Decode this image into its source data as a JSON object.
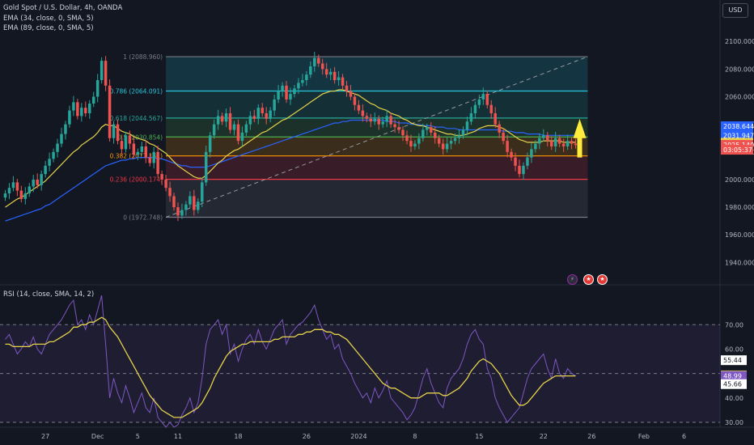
{
  "header": {
    "symbol_line": "Gold Spot / U.S. Dollar, 4h, OANDA",
    "ema34_label": "EMA (34, close, 0, SMA, 5)",
    "ema89_label": "EMA (89, close, 0, SMA, 5)",
    "currency_button": "USD"
  },
  "colors": {
    "background": "#131722",
    "up_candle": "#26a69a",
    "down_candle": "#ef5350",
    "ema34": "#e5d24a",
    "ema89": "#2962ff",
    "rsi_line": "#7e57c2",
    "rsi_ma": "#e5d24a",
    "arrow": "#ffeb3b"
  },
  "chart_data": [
    {
      "type": "candlestick",
      "ylim": [
        1925,
        2130
      ],
      "y_ticks": [
        "2100.000",
        "2080.000",
        "2060.000",
        "2040.000",
        "2020.000",
        "2000.000",
        "1980.000",
        "1960.000",
        "1940.000"
      ],
      "y_tick_values": [
        2100,
        2080,
        2060,
        2040,
        2020,
        2000,
        1980,
        1960,
        1940
      ],
      "x_ticks": [
        "27",
        "Dec",
        "5",
        "11",
        "18",
        "26",
        "2024",
        "8",
        "15",
        "22",
        "26",
        "Feb",
        "6"
      ],
      "x_tick_index": [
        10,
        23,
        33,
        43,
        58,
        75,
        88,
        102,
        118,
        134,
        146,
        159,
        169
      ],
      "series": [
        {
          "name": "price",
          "close": [
            1990,
            1994,
            1998,
            1992,
            1986,
            1990,
            1995,
            2000,
            1996,
            2004,
            2010,
            2015,
            2020,
            2026,
            2033,
            2040,
            2050,
            2056,
            2046,
            2052,
            2048,
            2055,
            2060,
            2072,
            2086,
            2068,
            2030,
            2040,
            2028,
            2022,
            2032,
            2026,
            2018,
            2020,
            2024,
            2016,
            2012,
            2020,
            2004,
            2000,
            1994,
            1988,
            1980,
            1974,
            1978,
            1982,
            1988,
            1978,
            1984,
            1998,
            2020,
            2032,
            2040,
            2046,
            2042,
            2048,
            2036,
            2040,
            2028,
            2034,
            2040,
            2046,
            2044,
            2052,
            2048,
            2044,
            2050,
            2058,
            2064,
            2068,
            2058,
            2062,
            2066,
            2070,
            2072,
            2076,
            2082,
            2088,
            2084,
            2080,
            2076,
            2078,
            2072,
            2074,
            2068,
            2064,
            2060,
            2054,
            2050,
            2046,
            2044,
            2042,
            2044,
            2040,
            2042,
            2046,
            2040,
            2038,
            2036,
            2032,
            2028,
            2024,
            2026,
            2030,
            2036,
            2038,
            2034,
            2030,
            2026,
            2022,
            2026,
            2028,
            2030,
            2032,
            2036,
            2042,
            2048,
            2054,
            2058,
            2062,
            2054,
            2048,
            2040,
            2034,
            2028,
            2020,
            2016,
            2010,
            2004,
            2010,
            2016,
            2022,
            2026,
            2030,
            2032,
            2028,
            2024,
            2030,
            2026,
            2024,
            2028,
            2026,
            2025
          ],
          "open_offset": -3
        }
      ],
      "price_labels": [
        {
          "text": "2038.644",
          "value": 2038.644,
          "color": "#2962ff"
        },
        {
          "text": "2031.947",
          "value": 2031.947,
          "color": "#2962ff"
        },
        {
          "text": "2026.648",
          "value": 2026.648,
          "color": "#e5d24a"
        },
        {
          "text": "2025.140",
          "value": 2025.14,
          "color": "#ef5350"
        },
        {
          "text": "03:05:37",
          "value": 2021.6,
          "color": "#ef5350"
        }
      ],
      "fibonacci": {
        "start_index": 40,
        "end_index": 145,
        "levels": [
          {
            "ratio": 1,
            "label": "1 (2088.960)",
            "value": 2088.96,
            "color": "#787b86"
          },
          {
            "ratio": 0.786,
            "label": "0.786 (2064.091)",
            "value": 2064.091,
            "color": "#26c6da"
          },
          {
            "ratio": 0.618,
            "label": "0.618 (2044.567)",
            "value": 2044.567,
            "color": "#26a69a"
          },
          {
            "ratio": 0.5,
            "label": "0.5 (2030.854)",
            "value": 2030.854,
            "color": "#4caf50"
          },
          {
            "ratio": 0.382,
            "label": "0.382 (2017.141)",
            "value": 2017.141,
            "color": "#ff9800"
          },
          {
            "ratio": 0.236,
            "label": "0.236 (2000.174)",
            "value": 2000.174,
            "color": "#f23645"
          },
          {
            "ratio": 0,
            "label": "0 (1972.748)",
            "value": 1972.748,
            "color": "#787b86"
          }
        ]
      },
      "ema34": [
        1980,
        1982,
        1984,
        1986,
        1987,
        1989,
        1991,
        1993,
        1995,
        1997,
        1999,
        2002,
        2005,
        2008,
        2011,
        2014,
        2017,
        2020,
        2022,
        2025,
        2027,
        2029,
        2031,
        2034,
        2038,
        2040,
        2039,
        2039,
        2037,
        2035,
        2034,
        2033,
        2031,
        2030,
        2029,
        2028,
        2026,
        2025,
        2023,
        2021,
        2019,
        2016,
        2013,
        2010,
        2008,
        2006,
        2004,
        2002,
        2001,
        2001,
        2003,
        2006,
        2009,
        2012,
        2014,
        2017,
        2019,
        2021,
        2022,
        2024,
        2026,
        2028,
        2030,
        2032,
        2034,
        2035,
        2037,
        2039,
        2041,
        2043,
        2044,
        2046,
        2048,
        2050,
        2052,
        2054,
        2056,
        2058,
        2060,
        2062,
        2063,
        2064,
        2064,
        2065,
        2065,
        2064,
        2063,
        2062,
        2061,
        2059,
        2057,
        2055,
        2054,
        2052,
        2051,
        2050,
        2048,
        2047,
        2046,
        2044,
        2043,
        2041,
        2040,
        2039,
        2039,
        2038,
        2037,
        2036,
        2035,
        2034,
        2033,
        2033,
        2032,
        2032,
        2032,
        2033,
        2034,
        2035,
        2037,
        2038,
        2039,
        2039,
        2039,
        2038,
        2037,
        2035,
        2033,
        2031,
        2029,
        2028,
        2027,
        2027,
        2027,
        2027,
        2028,
        2028,
        2028,
        2028,
        2028,
        2027,
        2027,
        2027,
        2027
      ],
      "ema89": [
        1970,
        1971,
        1972,
        1973,
        1974,
        1975,
        1976,
        1977,
        1978,
        1979,
        1981,
        1982,
        1984,
        1986,
        1988,
        1990,
        1992,
        1994,
        1996,
        1998,
        2000,
        2002,
        2004,
        2006,
        2008,
        2010,
        2011,
        2012,
        2013,
        2014,
        2014,
        2015,
        2015,
        2016,
        2016,
        2016,
        2016,
        2016,
        2015,
        2015,
        2014,
        2013,
        2012,
        2011,
        2010,
        2010,
        2009,
        2009,
        2009,
        2009,
        2009,
        2010,
        2011,
        2012,
        2013,
        2014,
        2015,
        2016,
        2017,
        2018,
        2019,
        2020,
        2021,
        2022,
        2023,
        2024,
        2025,
        2026,
        2027,
        2028,
        2029,
        2030,
        2031,
        2032,
        2033,
        2034,
        2035,
        2036,
        2037,
        2038,
        2039,
        2040,
        2041,
        2041,
        2042,
        2042,
        2043,
        2043,
        2043,
        2043,
        2043,
        2043,
        2043,
        2043,
        2043,
        2042,
        2042,
        2042,
        2041,
        2041,
        2041,
        2040,
        2040,
        2040,
        2039,
        2039,
        2039,
        2038,
        2038,
        2038,
        2037,
        2037,
        2037,
        2036,
        2036,
        2036,
        2036,
        2036,
        2036,
        2036,
        2036,
        2036,
        2036,
        2036,
        2035,
        2035,
        2035,
        2034,
        2034,
        2034,
        2033,
        2033,
        2033,
        2033,
        2032,
        2032,
        2032,
        2032,
        2032,
        2032,
        2032,
        2032,
        2032
      ]
    },
    {
      "type": "line",
      "title": "RSI (14, close, SMA, 14, 2)",
      "ylim": [
        28,
        85
      ],
      "y_ticks": [
        "70.00",
        "60.00",
        "50.00",
        "40.00",
        "30.00"
      ],
      "y_tick_values": [
        70,
        60,
        50,
        40,
        30
      ],
      "reference_lines": [
        70,
        50,
        30
      ],
      "value_labels": [
        {
          "text": "55.44",
          "value": 55.44,
          "bg": "#ffffff",
          "fg": "#131722"
        },
        {
          "text": "49.23",
          "value": 49.23,
          "bg": "#e5d24a",
          "fg": "#131722"
        },
        {
          "text": "48.99",
          "value": 48.99,
          "bg": "#7e57c2",
          "fg": "#ffffff"
        },
        {
          "text": "45.66",
          "value": 45.66,
          "bg": "#ffffff",
          "fg": "#131722"
        }
      ],
      "series": [
        {
          "name": "rsi",
          "values": [
            64,
            66,
            62,
            58,
            60,
            63,
            61,
            65,
            60,
            58,
            62,
            66,
            68,
            70,
            72,
            75,
            78,
            80,
            70,
            72,
            68,
            74,
            70,
            76,
            82,
            62,
            40,
            48,
            42,
            38,
            45,
            40,
            34,
            38,
            42,
            36,
            34,
            40,
            32,
            30,
            28,
            30,
            28,
            29,
            33,
            36,
            40,
            34,
            38,
            48,
            62,
            68,
            70,
            72,
            66,
            70,
            58,
            62,
            55,
            60,
            64,
            66,
            62,
            68,
            63,
            60,
            64,
            68,
            70,
            72,
            62,
            66,
            68,
            70,
            71,
            73,
            75,
            78,
            72,
            68,
            64,
            66,
            60,
            62,
            56,
            53,
            50,
            46,
            43,
            40,
            42,
            38,
            44,
            40,
            43,
            47,
            40,
            38,
            36,
            34,
            31,
            33,
            36,
            42,
            48,
            52,
            46,
            42,
            38,
            36,
            44,
            48,
            50,
            52,
            56,
            62,
            66,
            68,
            64,
            62,
            52,
            48,
            40,
            36,
            33,
            30,
            32,
            34,
            36,
            42,
            48,
            52,
            54,
            56,
            58,
            52,
            48,
            56,
            50,
            48,
            52,
            50,
            49
          ]
        },
        {
          "name": "rsi_ma",
          "values": [
            62,
            62,
            61,
            61,
            61,
            61,
            61,
            62,
            62,
            62,
            62,
            63,
            63,
            64,
            65,
            66,
            67,
            69,
            69,
            70,
            70,
            71,
            71,
            72,
            73,
            72,
            69,
            67,
            65,
            62,
            59,
            56,
            53,
            50,
            47,
            44,
            41,
            39,
            37,
            35,
            34,
            33,
            32,
            32,
            32,
            33,
            34,
            35,
            36,
            38,
            41,
            44,
            48,
            51,
            54,
            57,
            59,
            60,
            61,
            62,
            62,
            63,
            63,
            63,
            63,
            63,
            63,
            64,
            64,
            65,
            65,
            65,
            65,
            66,
            66,
            67,
            67,
            68,
            68,
            68,
            67,
            67,
            66,
            66,
            65,
            64,
            62,
            60,
            58,
            56,
            54,
            52,
            50,
            48,
            46,
            45,
            44,
            44,
            43,
            42,
            41,
            40,
            40,
            40,
            41,
            42,
            42,
            42,
            42,
            41,
            41,
            42,
            43,
            44,
            46,
            48,
            51,
            53,
            55,
            56,
            55,
            54,
            52,
            50,
            47,
            44,
            41,
            39,
            37,
            37,
            38,
            40,
            42,
            44,
            46,
            47,
            48,
            49,
            49,
            49,
            49,
            49,
            49
          ]
        }
      ]
    }
  ]
}
